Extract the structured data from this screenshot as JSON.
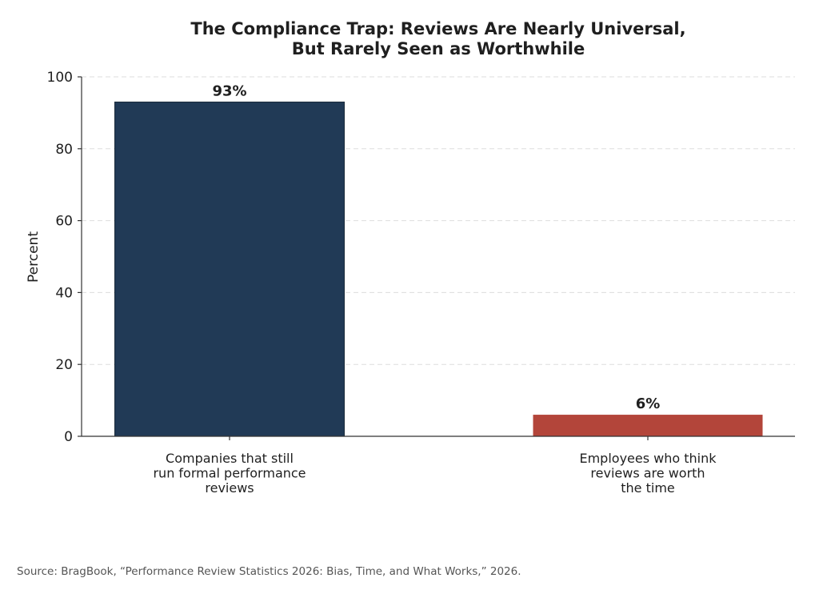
{
  "chart_data": {
    "type": "bar",
    "title_lines": [
      "The Compliance Trap: Reviews Are Nearly Universal,",
      "But Rarely Seen as Worthwhile"
    ],
    "ylabel": "Percent",
    "xlabel": "",
    "ylim": [
      0,
      100
    ],
    "yticks": [
      0,
      20,
      40,
      60,
      80,
      100
    ],
    "grid": "horizontal-dashed",
    "categories": [
      {
        "lines": [
          "Companies that still",
          "run formal performance",
          "reviews"
        ]
      },
      {
        "lines": [
          "Employees who think",
          "reviews are worth",
          "the time"
        ]
      }
    ],
    "values": [
      93,
      6
    ],
    "data_labels": [
      "93%",
      "6%"
    ],
    "colors": [
      "#213a56",
      "#b3453a"
    ]
  },
  "source": "Source: BragBook, “Performance Review Statistics 2026: Bias, Time, and What Works,” 2026."
}
